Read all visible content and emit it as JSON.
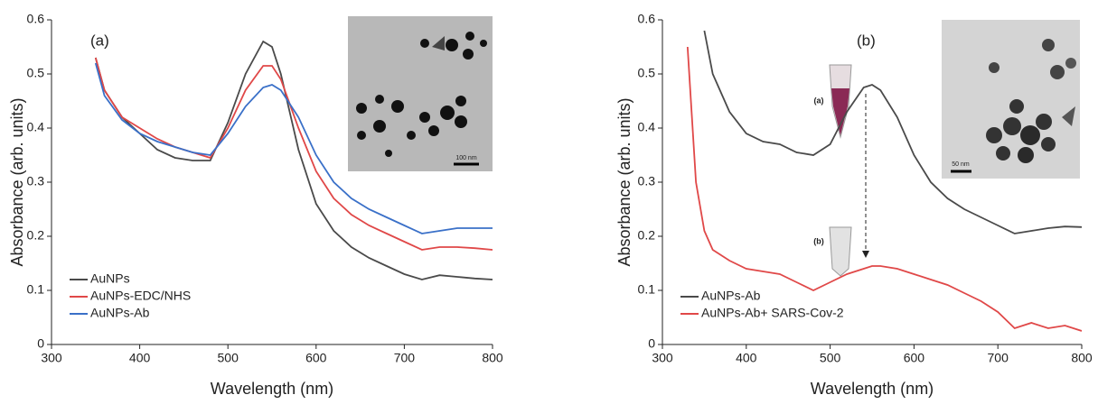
{
  "chart_data": [
    {
      "type": "line",
      "panel_label": "(a)",
      "inset_scale": "100 nm",
      "xlabel": "Wavelength (nm)",
      "ylabel": "Absorbance (arb. units)",
      "x": [
        350,
        360,
        380,
        400,
        420,
        440,
        460,
        480,
        500,
        520,
        540,
        550,
        560,
        580,
        600,
        620,
        640,
        660,
        680,
        700,
        720,
        740,
        760,
        780,
        800
      ],
      "series": [
        {
          "name": "AuNPs",
          "color": "#4a4a4a",
          "values": [
            0.53,
            0.47,
            0.42,
            0.39,
            0.36,
            0.345,
            0.34,
            0.34,
            0.41,
            0.5,
            0.56,
            0.55,
            0.5,
            0.36,
            0.26,
            0.21,
            0.18,
            0.16,
            0.145,
            0.13,
            0.12,
            0.128,
            0.125,
            0.122,
            0.12
          ]
        },
        {
          "name": "AuNPs-EDC/NHS",
          "color": "#e04848",
          "values": [
            0.53,
            0.47,
            0.42,
            0.4,
            0.38,
            0.365,
            0.355,
            0.345,
            0.4,
            0.47,
            0.515,
            0.515,
            0.49,
            0.4,
            0.32,
            0.27,
            0.24,
            0.22,
            0.205,
            0.19,
            0.175,
            0.18,
            0.18,
            0.178,
            0.175
          ]
        },
        {
          "name": "AuNPs-Ab",
          "color": "#3a70c8",
          "values": [
            0.52,
            0.46,
            0.415,
            0.39,
            0.375,
            0.365,
            0.355,
            0.35,
            0.39,
            0.44,
            0.475,
            0.48,
            0.47,
            0.42,
            0.35,
            0.3,
            0.27,
            0.25,
            0.235,
            0.22,
            0.205,
            0.21,
            0.215,
            0.215,
            0.215
          ]
        }
      ],
      "xlim": [
        300,
        800
      ],
      "xticks": [
        300,
        400,
        500,
        600,
        700,
        800
      ],
      "ylim": [
        0,
        0.6
      ],
      "yticks": [
        0,
        0.1,
        0.2,
        0.3,
        0.4,
        0.5,
        0.6
      ],
      "legend": "lower left"
    },
    {
      "type": "line",
      "panel_label": "(b)",
      "inset_scale": "50 nm",
      "tube_labels": [
        "(a)",
        "(b)"
      ],
      "xlabel": "Wavelength (nm)",
      "ylabel": "Absorbance (arb. units)",
      "x": [
        330,
        340,
        350,
        360,
        380,
        400,
        420,
        440,
        460,
        480,
        500,
        520,
        540,
        550,
        560,
        580,
        600,
        620,
        640,
        660,
        680,
        700,
        720,
        740,
        760,
        780,
        800
      ],
      "series": [
        {
          "name": "AuNPs-Ab",
          "color": "#4a4a4a",
          "values": [
            null,
            null,
            0.58,
            0.5,
            0.43,
            0.39,
            0.375,
            0.37,
            0.355,
            0.35,
            0.37,
            0.43,
            0.475,
            0.48,
            0.47,
            0.42,
            0.35,
            0.3,
            0.27,
            0.25,
            0.235,
            0.22,
            0.205,
            0.21,
            0.215,
            0.218,
            0.217
          ]
        },
        {
          "name": "AuNPs-Ab+ SARS-Cov-2",
          "color": "#e04848",
          "values": [
            0.55,
            0.3,
            0.21,
            0.175,
            0.155,
            0.14,
            0.135,
            0.13,
            0.115,
            0.1,
            0.115,
            0.13,
            0.14,
            0.145,
            0.145,
            0.14,
            0.13,
            0.12,
            0.11,
            0.095,
            0.08,
            0.06,
            0.03,
            0.04,
            0.03,
            0.035,
            0.025
          ]
        }
      ],
      "xlim": [
        300,
        800
      ],
      "xticks": [
        300,
        400,
        500,
        600,
        700,
        800
      ],
      "ylim": [
        0,
        0.6
      ],
      "yticks": [
        0,
        0.1,
        0.2,
        0.3,
        0.4,
        0.5,
        0.6
      ],
      "legend": "lower left"
    }
  ]
}
